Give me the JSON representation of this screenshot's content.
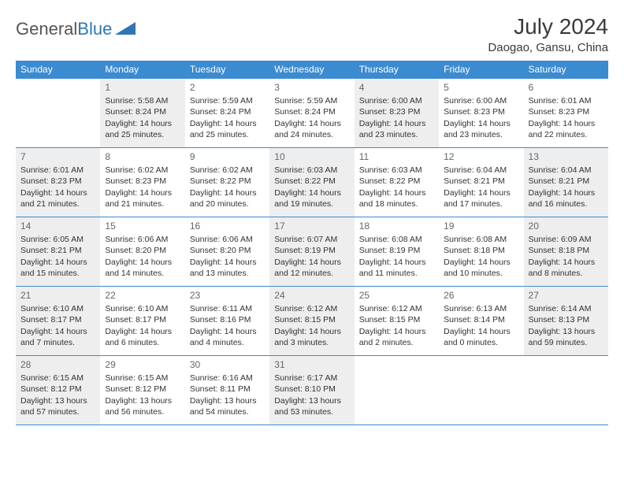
{
  "brand": {
    "part1": "General",
    "part2": "Blue",
    "color_text": "#555555",
    "color_accent": "#2f75b5"
  },
  "title": "July 2024",
  "location": "Daogao, Gansu, China",
  "header_bg": "#3b8bd0",
  "header_fg": "#ffffff",
  "border_color": "#3b8bd0",
  "shade_color": "#eeeeee",
  "weekdays": [
    "Sunday",
    "Monday",
    "Tuesday",
    "Wednesday",
    "Thursday",
    "Friday",
    "Saturday"
  ],
  "weeks": [
    [
      {
        "day": "",
        "lines": []
      },
      {
        "day": "1",
        "shade": true,
        "lines": [
          "Sunrise: 5:58 AM",
          "Sunset: 8:24 PM",
          "Daylight: 14 hours and 25 minutes."
        ]
      },
      {
        "day": "2",
        "lines": [
          "Sunrise: 5:59 AM",
          "Sunset: 8:24 PM",
          "Daylight: 14 hours and 25 minutes."
        ]
      },
      {
        "day": "3",
        "lines": [
          "Sunrise: 5:59 AM",
          "Sunset: 8:24 PM",
          "Daylight: 14 hours and 24 minutes."
        ]
      },
      {
        "day": "4",
        "shade": true,
        "lines": [
          "Sunrise: 6:00 AM",
          "Sunset: 8:23 PM",
          "Daylight: 14 hours and 23 minutes."
        ]
      },
      {
        "day": "5",
        "lines": [
          "Sunrise: 6:00 AM",
          "Sunset: 8:23 PM",
          "Daylight: 14 hours and 23 minutes."
        ]
      },
      {
        "day": "6",
        "lines": [
          "Sunrise: 6:01 AM",
          "Sunset: 8:23 PM",
          "Daylight: 14 hours and 22 minutes."
        ]
      }
    ],
    [
      {
        "day": "7",
        "shade": true,
        "lines": [
          "Sunrise: 6:01 AM",
          "Sunset: 8:23 PM",
          "Daylight: 14 hours and 21 minutes."
        ]
      },
      {
        "day": "8",
        "lines": [
          "Sunrise: 6:02 AM",
          "Sunset: 8:23 PM",
          "Daylight: 14 hours and 21 minutes."
        ]
      },
      {
        "day": "9",
        "lines": [
          "Sunrise: 6:02 AM",
          "Sunset: 8:22 PM",
          "Daylight: 14 hours and 20 minutes."
        ]
      },
      {
        "day": "10",
        "shade": true,
        "lines": [
          "Sunrise: 6:03 AM",
          "Sunset: 8:22 PM",
          "Daylight: 14 hours and 19 minutes."
        ]
      },
      {
        "day": "11",
        "lines": [
          "Sunrise: 6:03 AM",
          "Sunset: 8:22 PM",
          "Daylight: 14 hours and 18 minutes."
        ]
      },
      {
        "day": "12",
        "lines": [
          "Sunrise: 6:04 AM",
          "Sunset: 8:21 PM",
          "Daylight: 14 hours and 17 minutes."
        ]
      },
      {
        "day": "13",
        "shade": true,
        "lines": [
          "Sunrise: 6:04 AM",
          "Sunset: 8:21 PM",
          "Daylight: 14 hours and 16 minutes."
        ]
      }
    ],
    [
      {
        "day": "14",
        "shade": true,
        "lines": [
          "Sunrise: 6:05 AM",
          "Sunset: 8:21 PM",
          "Daylight: 14 hours and 15 minutes."
        ]
      },
      {
        "day": "15",
        "lines": [
          "Sunrise: 6:06 AM",
          "Sunset: 8:20 PM",
          "Daylight: 14 hours and 14 minutes."
        ]
      },
      {
        "day": "16",
        "lines": [
          "Sunrise: 6:06 AM",
          "Sunset: 8:20 PM",
          "Daylight: 14 hours and 13 minutes."
        ]
      },
      {
        "day": "17",
        "shade": true,
        "lines": [
          "Sunrise: 6:07 AM",
          "Sunset: 8:19 PM",
          "Daylight: 14 hours and 12 minutes."
        ]
      },
      {
        "day": "18",
        "lines": [
          "Sunrise: 6:08 AM",
          "Sunset: 8:19 PM",
          "Daylight: 14 hours and 11 minutes."
        ]
      },
      {
        "day": "19",
        "lines": [
          "Sunrise: 6:08 AM",
          "Sunset: 8:18 PM",
          "Daylight: 14 hours and 10 minutes."
        ]
      },
      {
        "day": "20",
        "shade": true,
        "lines": [
          "Sunrise: 6:09 AM",
          "Sunset: 8:18 PM",
          "Daylight: 14 hours and 8 minutes."
        ]
      }
    ],
    [
      {
        "day": "21",
        "shade": true,
        "lines": [
          "Sunrise: 6:10 AM",
          "Sunset: 8:17 PM",
          "Daylight: 14 hours and 7 minutes."
        ]
      },
      {
        "day": "22",
        "lines": [
          "Sunrise: 6:10 AM",
          "Sunset: 8:17 PM",
          "Daylight: 14 hours and 6 minutes."
        ]
      },
      {
        "day": "23",
        "lines": [
          "Sunrise: 6:11 AM",
          "Sunset: 8:16 PM",
          "Daylight: 14 hours and 4 minutes."
        ]
      },
      {
        "day": "24",
        "shade": true,
        "lines": [
          "Sunrise: 6:12 AM",
          "Sunset: 8:15 PM",
          "Daylight: 14 hours and 3 minutes."
        ]
      },
      {
        "day": "25",
        "lines": [
          "Sunrise: 6:12 AM",
          "Sunset: 8:15 PM",
          "Daylight: 14 hours and 2 minutes."
        ]
      },
      {
        "day": "26",
        "lines": [
          "Sunrise: 6:13 AM",
          "Sunset: 8:14 PM",
          "Daylight: 14 hours and 0 minutes."
        ]
      },
      {
        "day": "27",
        "shade": true,
        "lines": [
          "Sunrise: 6:14 AM",
          "Sunset: 8:13 PM",
          "Daylight: 13 hours and 59 minutes."
        ]
      }
    ],
    [
      {
        "day": "28",
        "shade": true,
        "lines": [
          "Sunrise: 6:15 AM",
          "Sunset: 8:12 PM",
          "Daylight: 13 hours and 57 minutes."
        ]
      },
      {
        "day": "29",
        "lines": [
          "Sunrise: 6:15 AM",
          "Sunset: 8:12 PM",
          "Daylight: 13 hours and 56 minutes."
        ]
      },
      {
        "day": "30",
        "lines": [
          "Sunrise: 6:16 AM",
          "Sunset: 8:11 PM",
          "Daylight: 13 hours and 54 minutes."
        ]
      },
      {
        "day": "31",
        "shade": true,
        "lines": [
          "Sunrise: 6:17 AM",
          "Sunset: 8:10 PM",
          "Daylight: 13 hours and 53 minutes."
        ]
      },
      {
        "day": "",
        "lines": []
      },
      {
        "day": "",
        "lines": []
      },
      {
        "day": "",
        "lines": []
      }
    ]
  ]
}
